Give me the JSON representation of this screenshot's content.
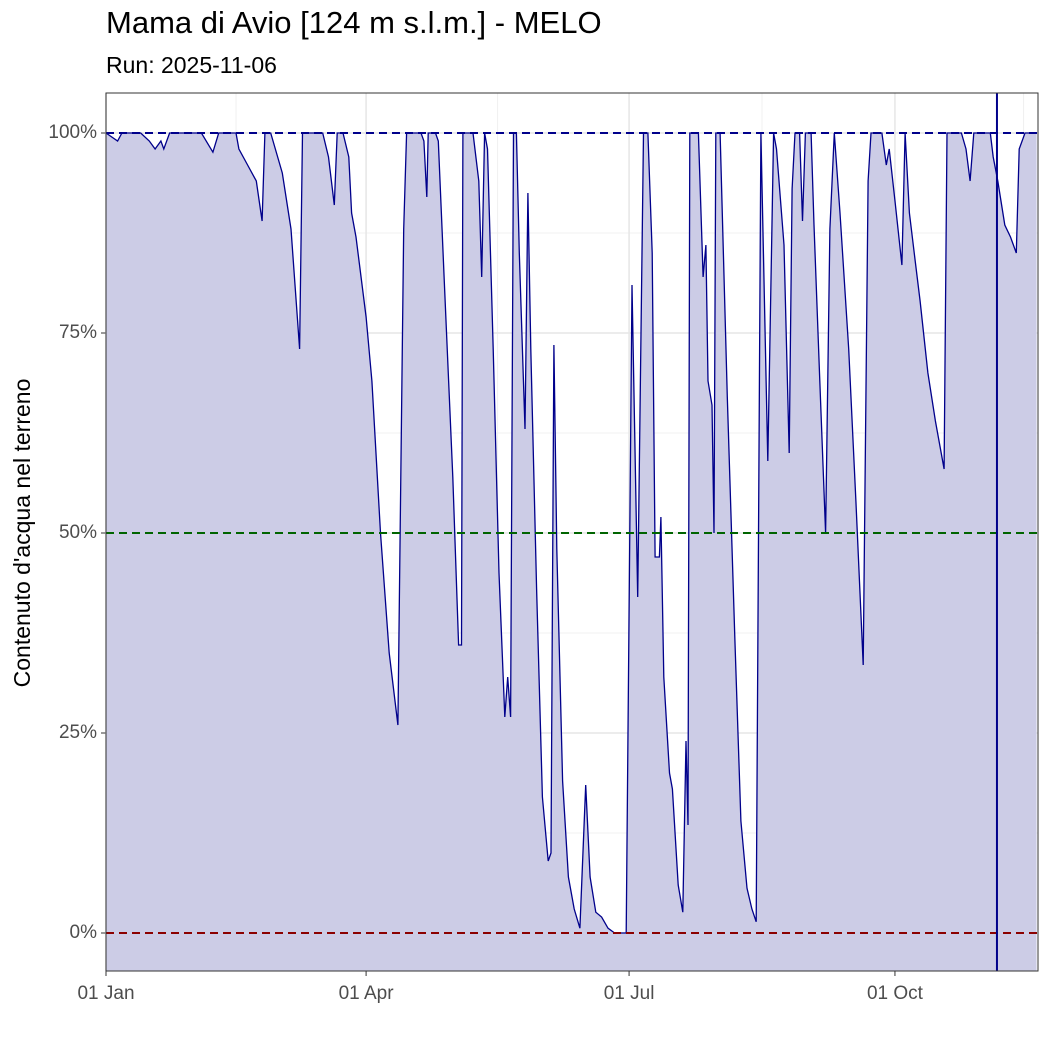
{
  "chart_data": {
    "type": "area",
    "title": "Mama di Avio [124 m s.l.m.] - MELO",
    "subtitle": "Run: 2025-11-06",
    "y_label": "Contenuto d'acqua nel terreno",
    "x": [
      0,
      4,
      5.5,
      12,
      15,
      17,
      19,
      20,
      22,
      33,
      37,
      39,
      45,
      46,
      49,
      52,
      54,
      55,
      57,
      61,
      64,
      67,
      68,
      75,
      77,
      79,
      80,
      82,
      84,
      85,
      86.5,
      90,
      92,
      95,
      98,
      101,
      103,
      104,
      109,
      110,
      111,
      111.5,
      114,
      115,
      117,
      120,
      122,
      123,
      123.5,
      127,
      129,
      130,
      131,
      132,
      134,
      136,
      138,
      139,
      140,
      141,
      142,
      143,
      145,
      146,
      147,
      149,
      151,
      153,
      154,
      155,
      156,
      158,
      160,
      162,
      164,
      166,
      167.5,
      169.5,
      171.5,
      173.7,
      176,
      180,
      182,
      184,
      186,
      187.5,
      189,
      190,
      191.5,
      192,
      193,
      195,
      196,
      198,
      199.6,
      200.7,
      201.4,
      202,
      205,
      206.6,
      207.6,
      208.3,
      209.7,
      210.4,
      211,
      212.5,
      215,
      217.6,
      219.7,
      221.8,
      223.5,
      225,
      226.6,
      229,
      231,
      232,
      234.6,
      236.4,
      237.4,
      238.4,
      240,
      241,
      242,
      244,
      245,
      247,
      249,
      250.5,
      252,
      252.6,
      254,
      257,
      259.5,
      262,
      263.7,
      264.7,
      268.5,
      270,
      271,
      273,
      275.4,
      276.5,
      278,
      280,
      281.7,
      284.4,
      287,
      290,
      291,
      296,
      297.6,
      299,
      300.3,
      306,
      307,
      308.6,
      311,
      313,
      315,
      316,
      318,
      322
    ],
    "series": [
      {
        "color": "#00008b",
        "fill": "#ccccE6",
        "values": [
          100,
          99,
          100,
          100,
          99,
          98,
          99,
          98,
          100,
          100,
          97.6,
          100,
          100,
          98,
          96,
          94,
          89,
          100,
          100,
          95,
          88,
          73,
          100,
          100,
          97,
          91,
          100,
          100,
          97,
          90,
          87,
          77,
          69,
          50,
          35,
          26,
          88,
          100,
          100,
          99,
          92,
          100,
          100,
          99,
          82,
          57,
          36,
          36,
          100,
          100,
          94,
          82,
          100,
          98,
          73,
          45,
          27,
          32,
          27,
          100,
          100,
          85,
          63,
          92.5,
          73,
          43,
          17,
          9,
          10,
          73.5,
          48,
          19,
          7,
          3,
          0.6,
          18.5,
          7,
          2.6,
          2,
          0.6,
          0,
          0,
          81,
          42,
          100,
          100,
          85,
          47,
          47,
          52,
          32,
          20,
          18,
          6,
          2.6,
          24,
          13.5,
          100,
          100,
          82,
          86,
          69,
          66,
          50,
          100,
          100,
          67,
          37,
          14,
          5.6,
          3,
          1.4,
          100,
          59,
          100,
          98,
          86,
          60,
          93,
          100,
          100,
          89,
          100,
          100,
          88.5,
          69,
          50,
          88,
          100,
          97,
          90,
          73,
          54,
          33.5,
          94,
          100,
          100,
          96,
          98,
          91.6,
          83.5,
          100,
          90,
          84,
          79,
          70,
          64,
          58,
          100,
          100,
          98,
          94,
          100,
          100,
          97,
          94,
          88.5,
          87,
          85,
          98,
          100,
          100
        ]
      }
    ],
    "xlim": [
      0,
      322.5
    ],
    "xticks": [
      {
        "value": 0,
        "label": "01 Jan"
      },
      {
        "value": 90,
        "label": "01 Apr"
      },
      {
        "value": 181,
        "label": "01 Jul"
      },
      {
        "value": 273,
        "label": "01 Oct"
      }
    ],
    "xminor": [
      45,
      135.5,
      227,
      317.5
    ],
    "ylim": [
      -4.75,
      105
    ],
    "yticks": [
      {
        "value": 0,
        "label": "0%"
      },
      {
        "value": 25,
        "label": "25%"
      },
      {
        "value": 50,
        "label": "50%"
      },
      {
        "value": 75,
        "label": "75%"
      },
      {
        "value": 100,
        "label": "100%"
      }
    ],
    "yminor": [
      12.5,
      37.5,
      62.5,
      87.5
    ],
    "grid": true,
    "hlines": [
      {
        "value": 100,
        "color": "#00008b"
      },
      {
        "value": 50,
        "color": "#006400"
      },
      {
        "value": 0,
        "color": "#8b0000"
      }
    ],
    "vline": {
      "value": 308.3,
      "color": "#00008b"
    }
  }
}
